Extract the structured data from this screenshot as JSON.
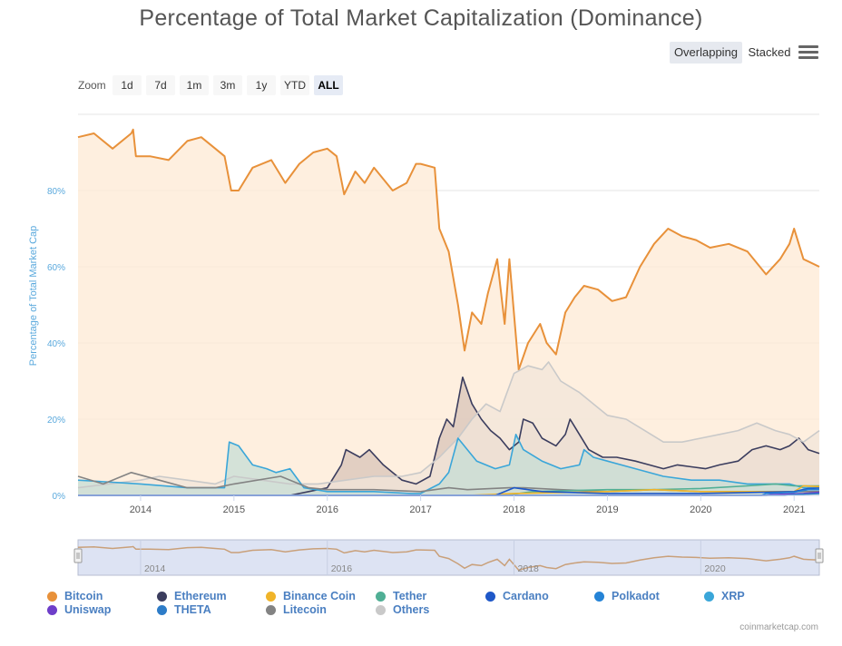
{
  "title": "Percentage of Total Market Capitalization (Dominance)",
  "modes": {
    "overlapping": "Overlapping",
    "stacked": "Stacked"
  },
  "menu_icon": "hamburger-menu-icon",
  "zoom": {
    "label": "Zoom",
    "buttons": [
      "1d",
      "7d",
      "1m",
      "3m",
      "1y",
      "YTD",
      "ALL"
    ],
    "active": "ALL"
  },
  "credits": "coinmarketcap.com",
  "chart_data": {
    "type": "area",
    "ylabel": "Percentage of Total Market Cap",
    "xlim": [
      2013.33,
      2021.27
    ],
    "ylim": [
      0,
      100
    ],
    "yticks": [
      "0%",
      "20%",
      "40%",
      "60%",
      "80%"
    ],
    "ytick_values": [
      0,
      20,
      40,
      60,
      80
    ],
    "xticks": [
      "2014",
      "2015",
      "2016",
      "2017",
      "2018",
      "2019",
      "2020",
      "2021"
    ],
    "xtick_values": [
      2014,
      2015,
      2016,
      2017,
      2018,
      2019,
      2020,
      2021
    ],
    "navigator_ticks": [
      "2014",
      "2016",
      "2018",
      "2020"
    ],
    "navigator_tick_values": [
      2014,
      2016,
      2018,
      2020
    ],
    "grid": true,
    "legend_placement": "bottom",
    "series": [
      {
        "name": "Bitcoin",
        "color": "#e8913a",
        "fill": "#fde9d4",
        "points": [
          [
            2013.33,
            94
          ],
          [
            2013.5,
            95
          ],
          [
            2013.7,
            91
          ],
          [
            2013.9,
            95
          ],
          [
            2013.92,
            96
          ],
          [
            2013.95,
            89
          ],
          [
            2014.1,
            89
          ],
          [
            2014.3,
            88
          ],
          [
            2014.5,
            93
          ],
          [
            2014.65,
            94
          ],
          [
            2014.8,
            91
          ],
          [
            2014.9,
            89
          ],
          [
            2014.97,
            80
          ],
          [
            2015.05,
            80
          ],
          [
            2015.2,
            86
          ],
          [
            2015.4,
            88
          ],
          [
            2015.55,
            82
          ],
          [
            2015.7,
            87
          ],
          [
            2015.85,
            90
          ],
          [
            2016.0,
            91
          ],
          [
            2016.1,
            89
          ],
          [
            2016.18,
            79
          ],
          [
            2016.3,
            85
          ],
          [
            2016.4,
            82
          ],
          [
            2016.5,
            86
          ],
          [
            2016.7,
            80
          ],
          [
            2016.85,
            82
          ],
          [
            2016.95,
            87
          ],
          [
            2017.0,
            87
          ],
          [
            2017.15,
            86
          ],
          [
            2017.2,
            70
          ],
          [
            2017.3,
            64
          ],
          [
            2017.4,
            50
          ],
          [
            2017.47,
            38
          ],
          [
            2017.55,
            48
          ],
          [
            2017.65,
            45
          ],
          [
            2017.72,
            53
          ],
          [
            2017.82,
            62
          ],
          [
            2017.9,
            45
          ],
          [
            2017.95,
            62
          ],
          [
            2018.05,
            33
          ],
          [
            2018.15,
            40
          ],
          [
            2018.28,
            45
          ],
          [
            2018.35,
            40
          ],
          [
            2018.45,
            37
          ],
          [
            2018.55,
            48
          ],
          [
            2018.65,
            52
          ],
          [
            2018.75,
            55
          ],
          [
            2018.9,
            54
          ],
          [
            2019.05,
            51
          ],
          [
            2019.2,
            52
          ],
          [
            2019.35,
            60
          ],
          [
            2019.5,
            66
          ],
          [
            2019.65,
            70
          ],
          [
            2019.8,
            68
          ],
          [
            2019.95,
            67
          ],
          [
            2020.1,
            65
          ],
          [
            2020.3,
            66
          ],
          [
            2020.5,
            64
          ],
          [
            2020.7,
            58
          ],
          [
            2020.85,
            62
          ],
          [
            2020.95,
            66
          ],
          [
            2021.0,
            70
          ],
          [
            2021.1,
            62
          ],
          [
            2021.27,
            60
          ]
        ]
      },
      {
        "name": "Ethereum",
        "color": "#3b3d5e",
        "fill": "#d8c4b8",
        "points": [
          [
            2013.33,
            0
          ],
          [
            2015.6,
            0
          ],
          [
            2015.8,
            1
          ],
          [
            2016.0,
            2
          ],
          [
            2016.15,
            8
          ],
          [
            2016.2,
            12
          ],
          [
            2016.35,
            10
          ],
          [
            2016.45,
            12
          ],
          [
            2016.6,
            8
          ],
          [
            2016.8,
            4
          ],
          [
            2016.95,
            3
          ],
          [
            2017.1,
            5
          ],
          [
            2017.2,
            15
          ],
          [
            2017.28,
            20
          ],
          [
            2017.35,
            18
          ],
          [
            2017.45,
            31
          ],
          [
            2017.55,
            24
          ],
          [
            2017.65,
            20
          ],
          [
            2017.75,
            17
          ],
          [
            2017.85,
            15
          ],
          [
            2017.95,
            12
          ],
          [
            2018.05,
            14
          ],
          [
            2018.1,
            20
          ],
          [
            2018.2,
            19
          ],
          [
            2018.3,
            15
          ],
          [
            2018.45,
            13
          ],
          [
            2018.55,
            16
          ],
          [
            2018.6,
            20
          ],
          [
            2018.7,
            16
          ],
          [
            2018.8,
            12
          ],
          [
            2018.95,
            10
          ],
          [
            2019.1,
            10
          ],
          [
            2019.3,
            9
          ],
          [
            2019.45,
            8
          ],
          [
            2019.6,
            7
          ],
          [
            2019.75,
            8
          ],
          [
            2019.9,
            7.5
          ],
          [
            2020.05,
            7
          ],
          [
            2020.2,
            8
          ],
          [
            2020.4,
            9
          ],
          [
            2020.55,
            12
          ],
          [
            2020.7,
            13
          ],
          [
            2020.85,
            12
          ],
          [
            2020.95,
            13
          ],
          [
            2021.05,
            15
          ],
          [
            2021.15,
            12
          ],
          [
            2021.27,
            11
          ]
        ]
      },
      {
        "name": "Others",
        "color": "#c9c9c9",
        "fill": "#f1e5da",
        "points": [
          [
            2013.33,
            2
          ],
          [
            2014.0,
            4
          ],
          [
            2014.2,
            5
          ],
          [
            2014.5,
            4
          ],
          [
            2014.8,
            3
          ],
          [
            2015.0,
            5
          ],
          [
            2015.3,
            4
          ],
          [
            2015.6,
            3
          ],
          [
            2015.9,
            3
          ],
          [
            2016.2,
            4
          ],
          [
            2016.5,
            5
          ],
          [
            2016.8,
            5
          ],
          [
            2017.0,
            6
          ],
          [
            2017.2,
            10
          ],
          [
            2017.4,
            15
          ],
          [
            2017.55,
            20
          ],
          [
            2017.7,
            24
          ],
          [
            2017.85,
            22
          ],
          [
            2018.0,
            32
          ],
          [
            2018.15,
            34
          ],
          [
            2018.3,
            33
          ],
          [
            2018.37,
            35
          ],
          [
            2018.5,
            30
          ],
          [
            2018.7,
            27
          ],
          [
            2018.9,
            23
          ],
          [
            2019.0,
            21
          ],
          [
            2019.2,
            20
          ],
          [
            2019.4,
            17
          ],
          [
            2019.6,
            14
          ],
          [
            2019.8,
            14
          ],
          [
            2020.0,
            15
          ],
          [
            2020.2,
            16
          ],
          [
            2020.4,
            17
          ],
          [
            2020.6,
            19
          ],
          [
            2020.8,
            17
          ],
          [
            2020.95,
            16
          ],
          [
            2021.1,
            14
          ],
          [
            2021.27,
            17
          ]
        ]
      },
      {
        "name": "XRP",
        "color": "#3aa6d9",
        "fill": "#c6ddd6",
        "points": [
          [
            2013.33,
            4
          ],
          [
            2014.0,
            3
          ],
          [
            2014.5,
            2
          ],
          [
            2014.9,
            2
          ],
          [
            2014.95,
            14
          ],
          [
            2015.05,
            13
          ],
          [
            2015.2,
            8
          ],
          [
            2015.35,
            7
          ],
          [
            2015.45,
            6
          ],
          [
            2015.6,
            7
          ],
          [
            2015.75,
            2
          ],
          [
            2016.0,
            1
          ],
          [
            2016.5,
            1
          ],
          [
            2016.9,
            0.5
          ],
          [
            2017.0,
            0.5
          ],
          [
            2017.2,
            3
          ],
          [
            2017.3,
            6
          ],
          [
            2017.4,
            15
          ],
          [
            2017.5,
            12
          ],
          [
            2017.6,
            9
          ],
          [
            2017.8,
            7
          ],
          [
            2017.95,
            8
          ],
          [
            2018.02,
            16
          ],
          [
            2018.1,
            12
          ],
          [
            2018.3,
            9
          ],
          [
            2018.5,
            7
          ],
          [
            2018.7,
            8
          ],
          [
            2018.75,
            12
          ],
          [
            2018.85,
            10
          ],
          [
            2019.0,
            9
          ],
          [
            2019.3,
            7
          ],
          [
            2019.6,
            5
          ],
          [
            2019.9,
            4
          ],
          [
            2020.2,
            4
          ],
          [
            2020.5,
            3
          ],
          [
            2020.8,
            3
          ],
          [
            2020.95,
            3
          ],
          [
            2021.1,
            2
          ],
          [
            2021.27,
            2
          ]
        ]
      },
      {
        "name": "Litecoin",
        "color": "#838383",
        "fill": "none",
        "points": [
          [
            2013.33,
            5
          ],
          [
            2013.6,
            3
          ],
          [
            2013.9,
            6
          ],
          [
            2014.2,
            4
          ],
          [
            2014.5,
            2
          ],
          [
            2014.8,
            2
          ],
          [
            2015.0,
            3
          ],
          [
            2015.5,
            5
          ],
          [
            2015.8,
            2
          ],
          [
            2016.0,
            1.5
          ],
          [
            2016.5,
            1.5
          ],
          [
            2017.0,
            1
          ],
          [
            2017.3,
            2
          ],
          [
            2017.5,
            1.5
          ],
          [
            2017.95,
            2
          ],
          [
            2018.1,
            2
          ],
          [
            2018.5,
            1.5
          ],
          [
            2019.0,
            1
          ],
          [
            2019.5,
            1.5
          ],
          [
            2020.0,
            1
          ],
          [
            2021.0,
            1
          ],
          [
            2021.27,
            1
          ]
        ]
      },
      {
        "name": "Tether",
        "color": "#50af95",
        "fill": "none",
        "points": [
          [
            2013.33,
            0
          ],
          [
            2017.9,
            0
          ],
          [
            2018.2,
            1
          ],
          [
            2019.0,
            1.5
          ],
          [
            2019.5,
            1.5
          ],
          [
            2020.0,
            1.8
          ],
          [
            2020.5,
            2.5
          ],
          [
            2020.8,
            3
          ],
          [
            2021.0,
            2.5
          ],
          [
            2021.27,
            2.5
          ]
        ]
      },
      {
        "name": "Binance Coin",
        "color": "#f0b429",
        "fill": "none",
        "points": [
          [
            2013.33,
            0
          ],
          [
            2017.5,
            0
          ],
          [
            2018.0,
            0.5
          ],
          [
            2019.0,
            1
          ],
          [
            2019.5,
            1.5
          ],
          [
            2020.0,
            1
          ],
          [
            2021.0,
            1
          ],
          [
            2021.1,
            2.5
          ],
          [
            2021.27,
            2.3
          ]
        ]
      },
      {
        "name": "Cardano",
        "color": "#1f58c8",
        "fill": "none",
        "points": [
          [
            2013.33,
            0
          ],
          [
            2017.8,
            0
          ],
          [
            2018.0,
            2
          ],
          [
            2018.3,
            1
          ],
          [
            2019.0,
            0.5
          ],
          [
            2020.0,
            0.5
          ],
          [
            2021.0,
            1
          ],
          [
            2021.15,
            1.8
          ],
          [
            2021.27,
            1.9
          ]
        ]
      },
      {
        "name": "Polkadot",
        "color": "#2583d6",
        "fill": "none",
        "points": [
          [
            2013.33,
            0
          ],
          [
            2020.65,
            0
          ],
          [
            2020.7,
            0.5
          ],
          [
            2021.0,
            0.8
          ],
          [
            2021.15,
            1.5
          ],
          [
            2021.27,
            1.5
          ]
        ]
      },
      {
        "name": "Uniswap",
        "color": "#6e3ec9",
        "fill": "none",
        "points": [
          [
            2013.33,
            0
          ],
          [
            2020.7,
            0
          ],
          [
            2020.75,
            0.2
          ],
          [
            2021.1,
            0.5
          ],
          [
            2021.27,
            0.8
          ]
        ]
      },
      {
        "name": "THETA",
        "color": "#2d7cc8",
        "fill": "none",
        "points": [
          [
            2013.33,
            0
          ],
          [
            2020.9,
            0
          ],
          [
            2021.0,
            0.2
          ],
          [
            2021.27,
            0.5
          ]
        ]
      }
    ],
    "legend": [
      "Bitcoin",
      "Ethereum",
      "Binance Coin",
      "Tether",
      "Cardano",
      "Polkadot",
      "XRP",
      "Uniswap",
      "THETA",
      "Litecoin",
      "Others"
    ]
  }
}
